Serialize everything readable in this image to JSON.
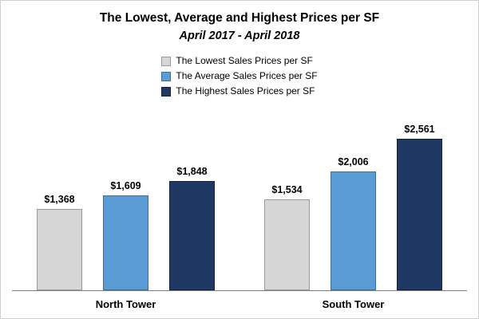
{
  "chart": {
    "title": "The Lowest, Average and Highest Prices per SF",
    "subtitle": "April 2017 - April 2018"
  },
  "chart_data": {
    "type": "bar",
    "title": "The Lowest, Average and Highest Prices per SF",
    "subtitle": "April 2017 - April 2018",
    "categories": [
      "North Tower",
      "South Tower"
    ],
    "series": [
      {
        "name": "The Lowest Sales Prices per SF",
        "color": "#d6d6d6",
        "border_color": "#9a9a9a",
        "values": [
          1368,
          1534
        ],
        "labels": [
          "$1,368",
          "$1,534"
        ]
      },
      {
        "name": "The Average Sales Prices per SF",
        "color": "#5b9bd5",
        "border_color": "#3c6e9f",
        "values": [
          1609,
          2006
        ],
        "labels": [
          "$1,609",
          "$2,006"
        ]
      },
      {
        "name": "The Highest Sales Prices per SF",
        "color": "#1f3864",
        "border_color": "#13213a",
        "values": [
          1848,
          2561
        ],
        "labels": [
          "$1,848",
          "$2,561"
        ]
      }
    ],
    "ylim": [
      0,
      2800
    ],
    "grid": false,
    "legend_position": "top",
    "xlabel": "",
    "ylabel": ""
  }
}
